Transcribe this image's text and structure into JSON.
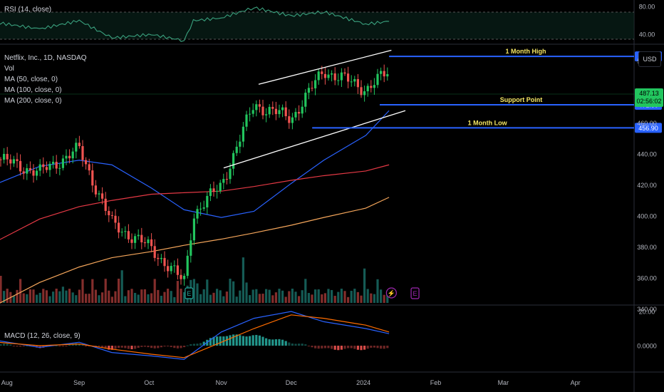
{
  "panels": {
    "rsi": {
      "label": "RSI (14, close)",
      "ticks": [
        "80.00",
        "40.00"
      ]
    },
    "price": {
      "legend": [
        "Netflix, Inc., 1D, NASDAQ",
        "Vol",
        "MA (50, close, 0)",
        "MA (100, close, 0)",
        "MA (200, close, 0)"
      ],
      "currency_button": "USD",
      "ticks": [
        "500.00",
        "460.00",
        "440.00",
        "420.00",
        "400.00",
        "380.00",
        "360.00",
        "340.00"
      ],
      "annotations": {
        "month_high": {
          "label": "1 Month High",
          "price": 503.06,
          "tag": "503.06"
        },
        "support": {
          "label": "Support Point",
          "price": 471.8,
          "tag": "471.80"
        },
        "month_low": {
          "label": "1 Month Low",
          "price": 456.9,
          "tag": "456.90"
        }
      },
      "last_price": {
        "price": "487.13",
        "countdown": "02:56:02"
      },
      "event_markers": [
        "E",
        "E"
      ]
    },
    "macd": {
      "label": "MACD (12, 26, close, 9)",
      "ticks": [
        "20.00",
        "0.0000"
      ]
    }
  },
  "time_axis": [
    "Aug",
    "Sep",
    "Oct",
    "Nov",
    "Dec",
    "2024",
    "Feb",
    "Mar",
    "Apr"
  ],
  "colors": {
    "up": "#26a69a",
    "up_candle": "#22c55e",
    "down": "#ef5350",
    "ma50": "#2962ff",
    "ma100": "#e53945",
    "ma200": "#f5a65b",
    "level": "#2962ff",
    "annotation_text": "#f5e663",
    "rsi": "#3aa17e"
  },
  "chart_data": {
    "type": "line",
    "series": [
      {
        "name": "MA (50, close, 0)",
        "x": [
          "2023-07-28",
          "2023-08-15",
          "2023-09-01",
          "2023-09-15",
          "2023-10-02",
          "2023-10-16",
          "2023-11-01",
          "2023-11-15",
          "2023-12-01",
          "2023-12-15",
          "2024-01-02",
          "2024-01-12"
        ],
        "values": [
          421,
          432,
          436,
          433,
          418,
          404,
          399,
          403,
          421,
          436,
          452,
          468
        ]
      },
      {
        "name": "MA (100, close, 0)",
        "x": [
          "2023-07-28",
          "2023-08-15",
          "2023-09-01",
          "2023-09-15",
          "2023-10-02",
          "2023-10-16",
          "2023-11-01",
          "2023-11-15",
          "2023-12-01",
          "2023-12-15",
          "2024-01-02",
          "2024-01-12"
        ],
        "values": [
          384,
          398,
          406,
          410,
          414,
          415,
          416,
          419,
          423,
          426,
          429,
          433
        ]
      },
      {
        "name": "MA (200, close, 0)",
        "x": [
          "2023-07-28",
          "2023-08-15",
          "2023-09-01",
          "2023-09-15",
          "2023-10-02",
          "2023-10-16",
          "2023-11-01",
          "2023-11-15",
          "2023-12-01",
          "2023-12-15",
          "2024-01-02",
          "2024-01-12"
        ],
        "values": [
          343,
          357,
          367,
          373,
          377,
          381,
          385,
          389,
          394,
          399,
          405,
          412
        ]
      },
      {
        "name": "Close",
        "x": [
          "2023-07-28",
          "2023-08-15",
          "2023-09-01",
          "2023-09-15",
          "2023-10-02",
          "2023-10-16",
          "2023-10-20",
          "2023-11-01",
          "2023-11-15",
          "2023-12-01",
          "2023-12-15",
          "2024-01-02",
          "2024-01-12"
        ],
        "values": [
          437,
          428,
          443,
          395,
          379,
          357,
          401,
          420,
          472,
          463,
          494,
          482,
          493
        ]
      }
    ],
    "ylim": [
      330,
      510
    ],
    "levels": [
      503.06,
      471.8,
      456.9
    ],
    "rsi": {
      "ylim": [
        30,
        90
      ],
      "x": [
        "2023-07-28",
        "2023-08-15",
        "2023-09-01",
        "2023-09-15",
        "2023-10-02",
        "2023-10-16",
        "2023-10-20",
        "2023-11-01",
        "2023-11-15",
        "2023-12-01",
        "2023-12-15",
        "2024-01-02",
        "2024-01-12"
      ],
      "values": [
        57,
        48,
        60,
        35,
        40,
        31,
        60,
        64,
        79,
        67,
        73,
        55,
        59
      ]
    },
    "macd": {
      "ylim": [
        -10,
        22
      ],
      "x": [
        "2023-07-28",
        "2023-08-15",
        "2023-09-01",
        "2023-09-15",
        "2023-10-02",
        "2023-10-16",
        "2023-11-01",
        "2023-11-15",
        "2023-12-01",
        "2023-12-15",
        "2024-01-02",
        "2024-01-12"
      ],
      "macd": [
        3,
        -1,
        2,
        -4,
        -6,
        -8,
        8,
        16,
        20,
        14,
        10,
        7
      ],
      "signal": [
        2,
        0,
        1,
        -2,
        -5,
        -7,
        2,
        10,
        18,
        16,
        12,
        8
      ]
    }
  }
}
